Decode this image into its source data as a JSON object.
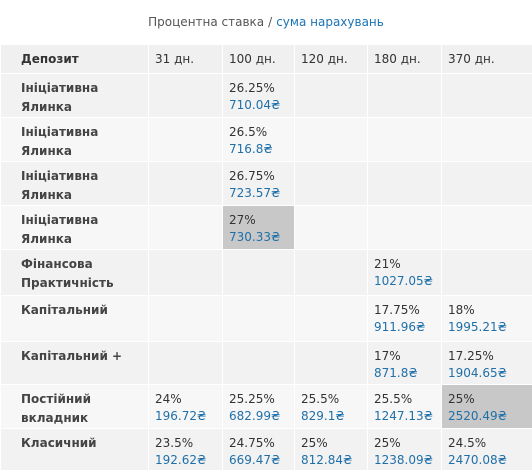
{
  "caption": {
    "rate_label": "Процентна ставка",
    "separator": "/",
    "amount_label": "сума нарахувань"
  },
  "header": {
    "deposit": "Депозит",
    "terms": [
      "31 дн.",
      "100 дн.",
      "120 дн.",
      "180 дн.",
      "370 дн."
    ]
  },
  "rows": [
    {
      "name": "Ініціативна Ялинка",
      "cells": [
        null,
        {
          "rate": "26.25%",
          "sum": "710.04₴"
        },
        null,
        null,
        null
      ]
    },
    {
      "name": "Ініціативна Ялинка",
      "cells": [
        null,
        {
          "rate": "26.5%",
          "sum": "716.8₴"
        },
        null,
        null,
        null
      ]
    },
    {
      "name": "Ініціативна Ялинка",
      "cells": [
        null,
        {
          "rate": "26.75%",
          "sum": "723.57₴"
        },
        null,
        null,
        null
      ]
    },
    {
      "name": "Ініціативна Ялинка",
      "cells": [
        null,
        {
          "rate": "27%",
          "sum": "730.33₴",
          "highlight": true
        },
        null,
        null,
        null
      ]
    },
    {
      "name": "Фінансова Практичність",
      "cells": [
        null,
        null,
        null,
        {
          "rate": "21%",
          "sum": "1027.05₴"
        },
        null
      ]
    },
    {
      "name": "Капітальний",
      "cells": [
        null,
        null,
        null,
        {
          "rate": "17.75%",
          "sum": "911.96₴"
        },
        {
          "rate": "18%",
          "sum": "1995.21₴"
        }
      ]
    },
    {
      "name": "Капітальний +",
      "cells": [
        null,
        null,
        null,
        {
          "rate": "17%",
          "sum": "871.8₴"
        },
        {
          "rate": "17.25%",
          "sum": "1904.65₴"
        }
      ]
    },
    {
      "name": "Постійний вкладник",
      "cells": [
        {
          "rate": "24%",
          "sum": "196.72₴"
        },
        {
          "rate": "25.25%",
          "sum": "682.99₴"
        },
        {
          "rate": "25.5%",
          "sum": "829.1₴"
        },
        {
          "rate": "25.5%",
          "sum": "1247.13₴"
        },
        {
          "rate": "25%",
          "sum": "2520.49₴",
          "highlight": true
        }
      ]
    },
    {
      "name": "Класичний",
      "cells": [
        {
          "rate": "23.5%",
          "sum": "192.62₴"
        },
        {
          "rate": "24.75%",
          "sum": "669.47₴"
        },
        {
          "rate": "25%",
          "sum": "812.84₴"
        },
        {
          "rate": "25%",
          "sum": "1238.09₴"
        },
        {
          "rate": "24.5%",
          "sum": "2470.08₴"
        }
      ]
    }
  ]
}
